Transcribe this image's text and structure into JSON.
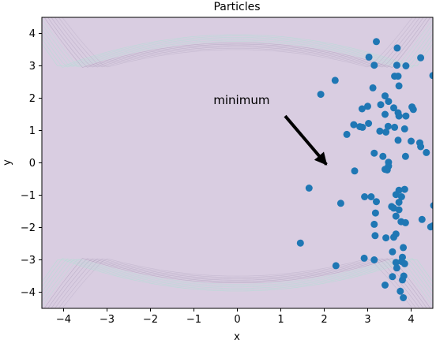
{
  "chart_data": {
    "type": "scatter",
    "title": "Particles",
    "xlabel": "x",
    "ylabel": "y",
    "xlim": [
      -4.5,
      4.5
    ],
    "ylim": [
      -4.5,
      4.5
    ],
    "x_ticks": [
      -4,
      -3,
      -2,
      -1,
      0,
      1,
      2,
      3,
      4
    ],
    "y_ticks": [
      -4,
      -3,
      -2,
      -1,
      0,
      1,
      2,
      3,
      4
    ],
    "x_tick_labels": [
      "−4",
      "−3",
      "−2",
      "−1",
      "0",
      "1",
      "2",
      "3",
      "4"
    ],
    "y_tick_labels": [
      "−4",
      "−3",
      "−2",
      "−1",
      "0",
      "1",
      "2",
      "3",
      "4"
    ],
    "background": "contour",
    "colors": {
      "points": "#1f77b4",
      "field": "#d9cde1",
      "contour_lines": "#a497b4",
      "contour_high": "#b4ddd6",
      "arrow": "#000000"
    },
    "annotation": {
      "text": "minimum",
      "text_at": [
        -0.55,
        1.82
      ],
      "arrow_from": [
        1.1,
        1.45
      ],
      "arrow_to": [
        2.05,
        -0.05
      ]
    },
    "points": [
      [
        3.2,
        3.75
      ],
      [
        3.68,
        3.55
      ],
      [
        3.03,
        3.27
      ],
      [
        4.22,
        3.25
      ],
      [
        3.15,
        3.02
      ],
      [
        3.67,
        3.02
      ],
      [
        3.88,
        3.0
      ],
      [
        2.25,
        2.55
      ],
      [
        3.62,
        2.68
      ],
      [
        3.7,
        2.68
      ],
      [
        4.5,
        2.7
      ],
      [
        3.12,
        2.32
      ],
      [
        3.72,
        2.38
      ],
      [
        1.92,
        2.12
      ],
      [
        3.4,
        2.07
      ],
      [
        3.48,
        1.9
      ],
      [
        3.3,
        1.8
      ],
      [
        3.0,
        1.75
      ],
      [
        2.87,
        1.67
      ],
      [
        3.6,
        1.7
      ],
      [
        4.02,
        1.73
      ],
      [
        4.05,
        1.65
      ],
      [
        3.4,
        1.5
      ],
      [
        3.7,
        1.55
      ],
      [
        3.72,
        1.45
      ],
      [
        3.88,
        1.45
      ],
      [
        2.68,
        1.18
      ],
      [
        2.82,
        1.12
      ],
      [
        2.88,
        1.1
      ],
      [
        3.02,
        1.22
      ],
      [
        3.47,
        1.13
      ],
      [
        3.62,
        1.1
      ],
      [
        3.85,
        1.05
      ],
      [
        3.28,
        0.98
      ],
      [
        3.42,
        0.95
      ],
      [
        2.52,
        0.88
      ],
      [
        3.7,
        0.7
      ],
      [
        4.0,
        0.67
      ],
      [
        4.2,
        0.62
      ],
      [
        4.22,
        0.5
      ],
      [
        4.35,
        0.32
      ],
      [
        3.15,
        0.3
      ],
      [
        3.35,
        0.2
      ],
      [
        3.87,
        0.2
      ],
      [
        3.48,
        0.02
      ],
      [
        3.48,
        -0.1
      ],
      [
        3.4,
        -0.2
      ],
      [
        3.45,
        -0.22
      ],
      [
        2.7,
        -0.25
      ],
      [
        1.65,
        -0.78
      ],
      [
        3.72,
        -0.85
      ],
      [
        3.85,
        -0.82
      ],
      [
        3.65,
        -0.98
      ],
      [
        2.93,
        -1.05
      ],
      [
        3.08,
        -1.05
      ],
      [
        3.78,
        -1.05
      ],
      [
        3.2,
        -1.2
      ],
      [
        3.72,
        -1.22
      ],
      [
        2.38,
        -1.25
      ],
      [
        3.55,
        -1.35
      ],
      [
        3.6,
        -1.4
      ],
      [
        4.52,
        -1.32
      ],
      [
        3.72,
        -1.45
      ],
      [
        3.18,
        -1.55
      ],
      [
        3.65,
        -1.65
      ],
      [
        4.25,
        -1.75
      ],
      [
        3.77,
        -1.82
      ],
      [
        3.87,
        -1.85
      ],
      [
        3.15,
        -1.9
      ],
      [
        4.45,
        -1.98
      ],
      [
        4.5,
        -1.95
      ],
      [
        3.17,
        -2.25
      ],
      [
        3.42,
        -2.32
      ],
      [
        3.65,
        -2.2
      ],
      [
        3.6,
        -2.3
      ],
      [
        1.45,
        -2.48
      ],
      [
        3.82,
        -2.62
      ],
      [
        3.57,
        -2.75
      ],
      [
        2.92,
        -2.95
      ],
      [
        3.8,
        -2.92
      ],
      [
        3.15,
        -3.0
      ],
      [
        3.78,
        -3.05
      ],
      [
        3.65,
        -3.08
      ],
      [
        3.85,
        -3.12
      ],
      [
        2.27,
        -3.18
      ],
      [
        3.67,
        -3.25
      ],
      [
        3.57,
        -3.52
      ],
      [
        3.83,
        -3.5
      ],
      [
        3.8,
        -3.62
      ],
      [
        3.4,
        -3.78
      ],
      [
        3.75,
        -3.97
      ],
      [
        3.82,
        -4.17
      ]
    ]
  }
}
